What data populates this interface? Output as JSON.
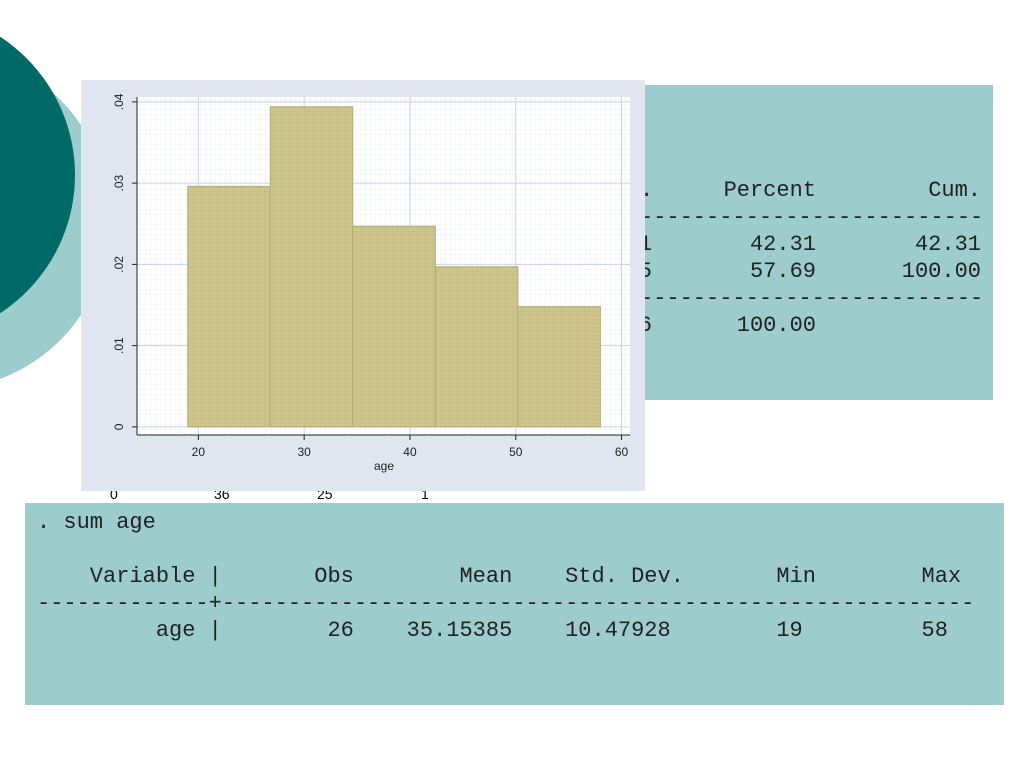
{
  "chart_data": {
    "type": "histogram",
    "xlabel": "age",
    "bins": [
      19,
      26.8,
      34.6,
      42.4,
      50.2,
      58
    ],
    "values": [
      0.0296,
      0.0394,
      0.0247,
      0.0197,
      0.0148
    ],
    "color": "#cdc58c",
    "xlim": [
      14.2,
      60.8
    ],
    "ylim": [
      -0.001,
      0.0406
    ],
    "xticks": [
      20,
      30,
      40,
      50,
      60
    ],
    "yticks": [
      0,
      {
        "value": 0.01,
        "label": ".01"
      },
      {
        "value": 0.02,
        "label": ".02"
      },
      {
        "value": 0.03,
        "label": ".03"
      },
      {
        "value": 0.04,
        "label": ".04"
      }
    ],
    "grid": true
  },
  "freq_table": {
    "header": [
      ".",
      "Percent",
      "Cum."
    ],
    "rule": "---------------------------",
    "rows": [
      [
        "1",
        "42.31",
        "42.31"
      ],
      [
        "5",
        "57.69",
        "100.00"
      ]
    ],
    "total": [
      "6",
      "100.00"
    ]
  },
  "hidden_row": [
    "0",
    "36",
    "25",
    "1"
  ],
  "summary": {
    "command": ". sum age",
    "header": "    Variable |       Obs        Mean    Std. Dev.       Min        Max",
    "rule": "-------------+---------------------------------------------------------",
    "row": "         age |        26    35.15385    10.47928        19         58"
  }
}
